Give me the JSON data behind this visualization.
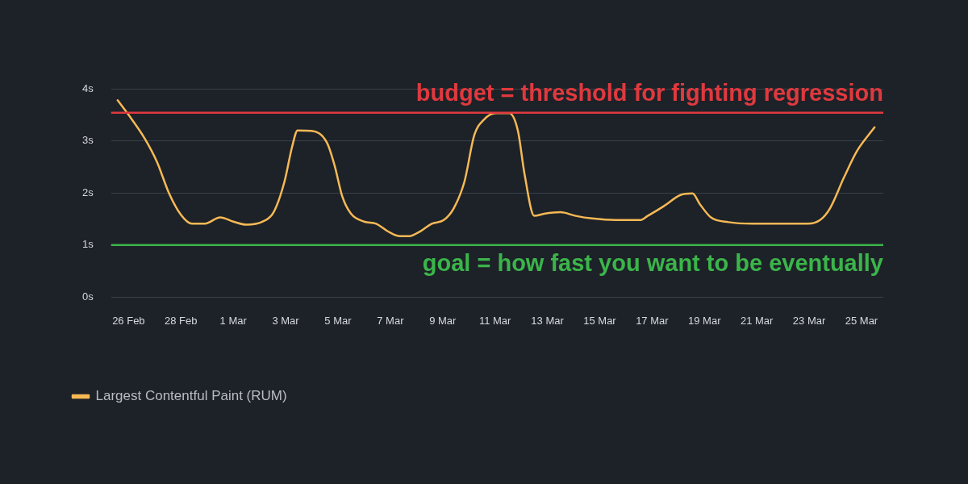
{
  "chart_data": {
    "type": "line",
    "legend": "bottom left",
    "grid": "y",
    "marker": "none",
    "line_style": "solid",
    "xlim": [
      "--02-25T08:00",
      "--03-25T20:00"
    ],
    "xticks": [
      {
        "value": "--02-26",
        "label": "26 Feb"
      },
      {
        "value": "--02-28",
        "label": "28 Feb"
      },
      {
        "value": "--03-01",
        "label": "1 Mar"
      },
      {
        "value": "--03-03",
        "label": "3 Mar"
      },
      {
        "value": "--03-05",
        "label": "5 Mar"
      },
      {
        "value": "--03-07",
        "label": "7 Mar"
      },
      {
        "value": "--03-09",
        "label": "9 Mar"
      },
      {
        "value": "--03-11",
        "label": "11 Mar"
      },
      {
        "value": "--03-13",
        "label": "13 Mar"
      },
      {
        "value": "--03-15",
        "label": "15 Mar"
      },
      {
        "value": "--03-17",
        "label": "17 Mar"
      },
      {
        "value": "--03-19",
        "label": "19 Mar"
      },
      {
        "value": "--03-21",
        "label": "21 Mar"
      },
      {
        "value": "--03-23",
        "label": "23 Mar"
      },
      {
        "value": "--03-25",
        "label": "25 Mar"
      }
    ],
    "ylim": [
      0,
      4
    ],
    "yticks": [
      {
        "value": 0,
        "label": "0s"
      },
      {
        "value": 1,
        "label": "1s"
      },
      {
        "value": 2,
        "label": "2s"
      },
      {
        "value": 3,
        "label": "3s"
      },
      {
        "value": 4,
        "label": "4s"
      }
    ],
    "series": [
      {
        "name": "Largest Contentful Paint (RUM)",
        "color": "#f7b955",
        "x": [
          "--02-25T14:00",
          "--02-26T00:00",
          "--02-26T15:00",
          "--02-27T02:00",
          "--02-27T13:00",
          "--02-28T00:00",
          "--02-28T10:00",
          "--02-28T22:00",
          "--02-29T12:00",
          "--03-01T00:00",
          "--03-01T12:00",
          "--03-02T03:00",
          "--03-02T13:00",
          "--03-02T23:00",
          "--03-03T06:00",
          "--03-03T11:00",
          "--03-04T00:00",
          "--03-04T14:00",
          "--03-04T21:00",
          "--03-05T04:00",
          "--03-05T12:00",
          "--03-06T00:00",
          "--03-06T11:00",
          "--03-06T22:00",
          "--03-07T09:00",
          "--03-07T17:00",
          "--03-08T04:00",
          "--03-08T14:00",
          "--03-09T01:00",
          "--03-09T10:00",
          "--03-09T20:00",
          "--03-10T05:00",
          "--03-10T14:00",
          "--03-11T01:00",
          "--03-11T13:00",
          "--03-11T21:00",
          "--03-12T03:00",
          "--03-12T12:00",
          "--03-12T21:00",
          "--03-13T12:00",
          "--03-14T02:00",
          "--03-14T17:00",
          "--03-15T15:00",
          "--03-16T13:00",
          "--03-16T20:00",
          "--03-17T11:00",
          "--03-18T02:00",
          "--03-18T13:00",
          "--03-18T20:00",
          "--03-19T06:00",
          "--03-19T22:00",
          "--03-20T20:00",
          "--03-22T01:00",
          "--03-22T23:00",
          "--03-23T10:00",
          "--03-23T19:00",
          "--03-24T08:00",
          "--03-24T20:00",
          "--03-25T12:00"
        ],
        "values": [
          3.78,
          3.5,
          3.04,
          2.6,
          2.0,
          1.58,
          1.41,
          1.41,
          1.53,
          1.45,
          1.39,
          1.45,
          1.63,
          2.22,
          2.89,
          3.2,
          3.19,
          2.96,
          2.52,
          1.93,
          1.6,
          1.45,
          1.41,
          1.26,
          1.17,
          1.17,
          1.27,
          1.41,
          1.48,
          1.7,
          2.22,
          3.11,
          3.41,
          3.53,
          3.53,
          3.19,
          2.37,
          1.56,
          1.6,
          1.63,
          1.56,
          1.51,
          1.48,
          1.48,
          1.56,
          1.75,
          1.96,
          1.99,
          1.78,
          1.53,
          1.44,
          1.41,
          1.41,
          1.41,
          1.48,
          1.7,
          2.3,
          2.81,
          3.26
        ]
      }
    ],
    "ref_lines": [
      {
        "axis": "y",
        "value": 3.54,
        "label": "budget = threshold for fighting regression",
        "color": "#e0393e",
        "line_style": "solid"
      },
      {
        "axis": "y",
        "value": 1,
        "label": "goal = how fast you want to be eventually",
        "color": "#3bb54a",
        "line_style": "solid"
      }
    ]
  }
}
